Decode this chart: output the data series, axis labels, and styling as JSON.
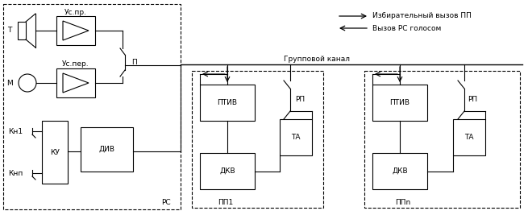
{
  "bg_color": "#ffffff",
  "line_color": "#000000",
  "figsize": [
    6.55,
    2.67
  ],
  "dpi": 100,
  "legend_arrow1_text": "Избирательный вызов ПП",
  "legend_arrow2_text": "Вызов РС голосом",
  "group_channel_text": "Групповой канал",
  "rs_label": "РС",
  "pp1_label": "ПП1",
  "ppn_label": "ППn",
  "T_label": "Т",
  "M_label": "М",
  "us_pr_label": "Ус.пр.",
  "us_per_label": "Ус.пер.",
  "P_label": "П",
  "KN1_label": "Кн1",
  "KNn_label": "Кнп",
  "KU_label": "КУ",
  "DIV_label": "ДИВ",
  "PTIV_label": "ПТИВ",
  "DKV_label": "ДКВ",
  "TA_label": "ТА",
  "RP_label": "РП"
}
